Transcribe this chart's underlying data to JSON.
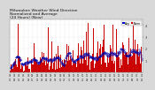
{
  "title": "Milwaukee Weather Wind Direction\nNormalized and Average\n(24 Hours) (New)",
  "title_fontsize": 3.2,
  "bg_color": "#d8d8d8",
  "plot_bg": "#ffffff",
  "bar_color": "#cc0000",
  "avg_color": "#0000aa",
  "ylim": [
    0,
    4.5
  ],
  "n_points": 365,
  "legend_labels": [
    "Avg",
    "Norm"
  ],
  "legend_colors": [
    "#0000cc",
    "#cc0000"
  ],
  "ytick_labels": [
    "1",
    "2",
    "3",
    "4"
  ],
  "ytick_vals": [
    1,
    2,
    3,
    4
  ]
}
